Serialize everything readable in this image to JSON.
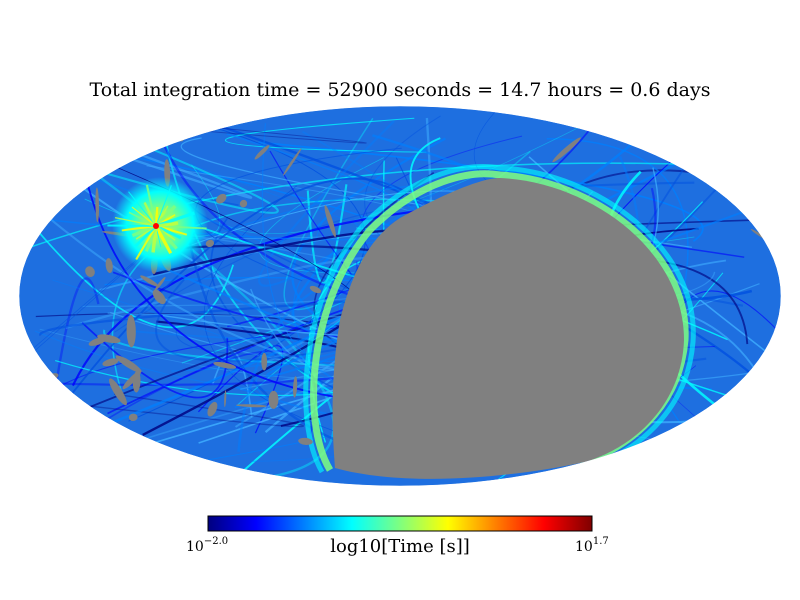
{
  "chart_data": {
    "type": "heatmap",
    "projection": "mollweide",
    "title": "Total integration time = 52900 seconds = 14.7 hours = 0.6 days",
    "colorbar": {
      "label": "log10[Time [s]]",
      "min_label": {
        "base": "10",
        "exponent": "−2.0"
      },
      "max_label": {
        "base": "10",
        "exponent": "1.7"
      },
      "log_range": [
        -2.0,
        1.7
      ],
      "colormap": "jet",
      "colors": [
        "#00007f",
        "#0000ff",
        "#007fff",
        "#00ffff",
        "#7fff7f",
        "#ffff00",
        "#ff7f00",
        "#ff0000",
        "#7f0000"
      ]
    },
    "unobserved_color": "#808080",
    "background_fill": "#1e6fe0",
    "regions": [
      {
        "name": "unobserved region",
        "value": null
      },
      {
        "name": "high-exposure pole",
        "value": 1.7
      },
      {
        "name": "scan-edge band",
        "value": 0.0
      }
    ]
  }
}
